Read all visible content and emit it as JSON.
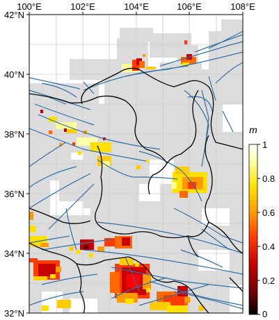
{
  "map": {
    "x_tick_labels": [
      "100°E",
      "102°E",
      "104°E",
      "106°E",
      "108°E"
    ],
    "y_tick_labels": [
      "42°N",
      "40°N",
      "38°N",
      "36°N",
      "34°N",
      "32°N"
    ],
    "lon_range": [
      100,
      108
    ],
    "lat_range": [
      32,
      42
    ],
    "grid": true,
    "colors": {
      "background": "#ffffff",
      "coverage": "#dcdcdc",
      "fault": "#2f6fa8",
      "boundary": "#000000",
      "grid": "#cccccc"
    }
  },
  "colorbar": {
    "title": "m",
    "tick_labels": [
      "1",
      "0.8",
      "0.6",
      "0.4",
      "0.2",
      "0"
    ],
    "range": [
      0,
      1
    ],
    "colormap": [
      "#000000",
      "#6b0000",
      "#c80000",
      "#ff3b00",
      "#ff9a00",
      "#ffe100",
      "#ffffa8",
      "#ffffff"
    ]
  }
}
